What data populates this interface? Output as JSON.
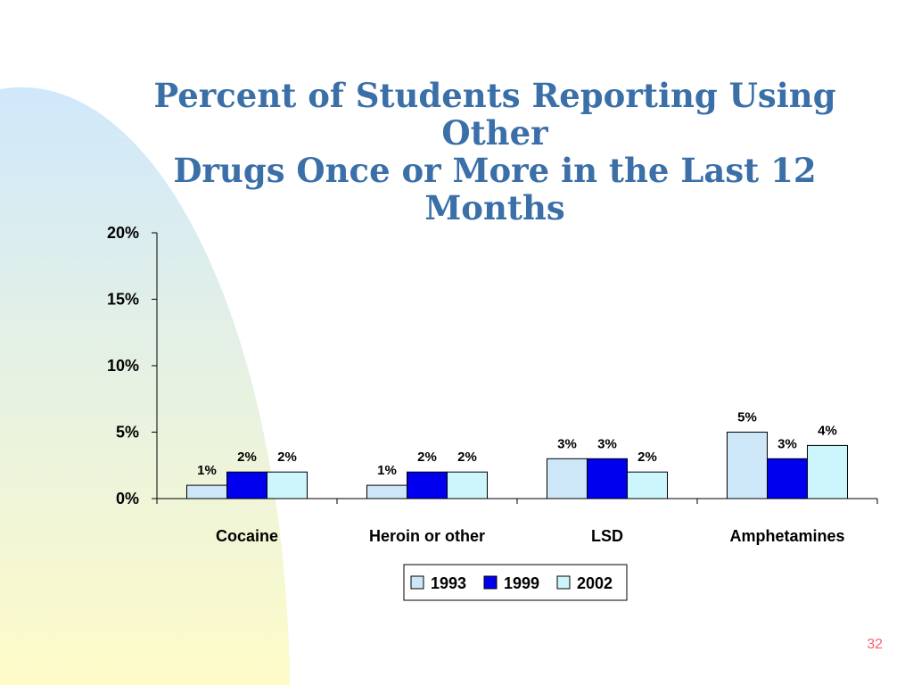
{
  "slide": {
    "title_line1": "Percent of Students Reporting Using Other",
    "title_line2": "Drugs Once or More in the Last 12 Months",
    "slide_number": "32",
    "title_color": "#3a6fa8",
    "slide_number_color": "#ff5c6c",
    "decor_colors": {
      "top": "#cfe8fb",
      "bottom": "#fefbc8"
    }
  },
  "chart_data": {
    "type": "bar",
    "title": "",
    "xlabel": "",
    "ylabel": "",
    "categories": [
      "Cocaine",
      "Heroin or other",
      "LSD",
      "Amphetamines"
    ],
    "series": [
      {
        "name": "1993",
        "values": [
          1,
          1,
          3,
          5
        ],
        "labels": [
          "1%",
          "1%",
          "3%",
          "5%"
        ],
        "color": "#cde6f8"
      },
      {
        "name": "1999",
        "values": [
          2,
          2,
          3,
          3
        ],
        "labels": [
          "2%",
          "2%",
          "3%",
          "3%"
        ],
        "color": "#0000ee"
      },
      {
        "name": "2002",
        "values": [
          2,
          2,
          2,
          4
        ],
        "labels": [
          "2%",
          "2%",
          "2%",
          "4%"
        ],
        "color": "#ccf6fb"
      }
    ],
    "ylim": [
      0,
      20
    ],
    "yticks": [
      0,
      5,
      10,
      15,
      20
    ],
    "ytick_labels": [
      "0%",
      "5%",
      "10%",
      "15%",
      "20%"
    ],
    "grid": false,
    "legend_position": "bottom-center"
  }
}
